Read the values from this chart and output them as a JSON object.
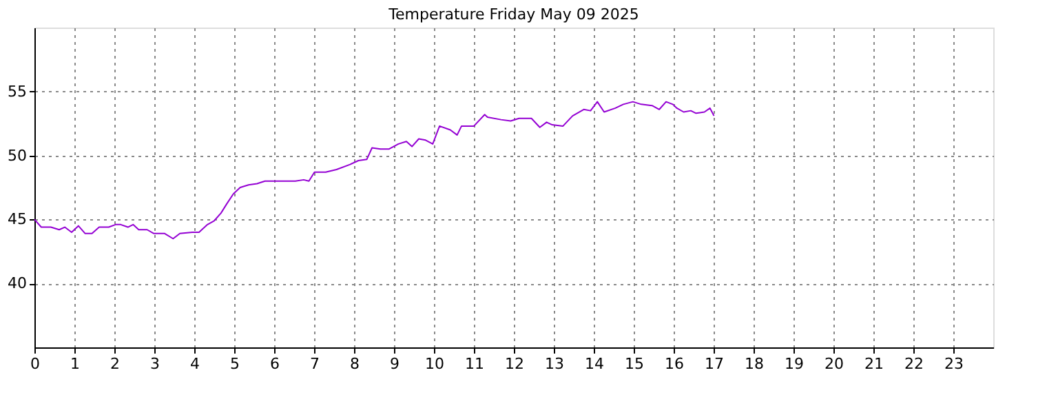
{
  "chart_data": {
    "type": "line",
    "title": "Temperature Friday May 09 2025",
    "x": [
      0,
      0.17,
      0.41,
      0.62,
      0.76,
      0.93,
      1.1,
      1.27,
      1.44,
      1.62,
      1.86,
      2.03,
      2.16,
      2.34,
      2.47,
      2.61,
      2.82,
      2.99,
      3.26,
      3.47,
      3.64,
      3.95,
      4.12,
      4.33,
      4.5,
      4.67,
      4.81,
      4.98,
      5.15,
      5.36,
      5.57,
      5.77,
      6.01,
      6.53,
      6.74,
      6.87,
      7.01,
      7.29,
      7.56,
      7.9,
      8.11,
      8.32,
      8.45,
      8.66,
      8.87,
      9.11,
      9.31,
      9.45,
      9.62,
      9.79,
      9.97,
      10.14,
      10.41,
      10.58,
      10.69,
      11.0,
      11.27,
      11.34,
      11.68,
      11.92,
      12.13,
      12.44,
      12.65,
      12.82,
      12.96,
      13.23,
      13.47,
      13.75,
      13.92,
      14.09,
      14.26,
      14.54,
      14.74,
      14.98,
      15.19,
      15.46,
      15.64,
      15.81,
      15.98,
      16.08,
      16.25,
      16.43,
      16.56,
      16.77,
      16.91,
      17.01
    ],
    "series": [
      {
        "color": "#9400d3",
        "values": [
          45.0,
          44.4,
          44.4,
          44.2,
          44.4,
          44.0,
          44.5,
          43.9,
          43.9,
          44.4,
          44.4,
          44.6,
          44.6,
          44.4,
          44.6,
          44.2,
          44.2,
          43.9,
          43.9,
          43.5,
          43.9,
          44.0,
          44.0,
          44.6,
          44.9,
          45.5,
          46.2,
          47.0,
          47.5,
          47.7,
          47.8,
          48.0,
          48.0,
          48.0,
          48.1,
          48.0,
          48.7,
          48.7,
          48.9,
          49.3,
          49.6,
          49.7,
          50.6,
          50.5,
          50.5,
          50.9,
          51.1,
          50.7,
          51.3,
          51.2,
          50.9,
          52.3,
          52.0,
          51.6,
          52.3,
          52.3,
          53.2,
          53.0,
          52.8,
          52.7,
          52.9,
          52.9,
          52.2,
          52.6,
          52.4,
          52.3,
          53.1,
          53.6,
          53.5,
          54.2,
          53.4,
          53.7,
          54.0,
          54.2,
          54.0,
          53.9,
          53.6,
          54.2,
          54.0,
          53.7,
          53.4,
          53.5,
          53.3,
          53.4,
          53.7,
          53.1
        ]
      }
    ],
    "xlim": [
      0,
      24
    ],
    "xticks": [
      0,
      1,
      2,
      3,
      4,
      5,
      6,
      7,
      8,
      9,
      10,
      11,
      12,
      13,
      14,
      15,
      16,
      17,
      18,
      19,
      20,
      21,
      22,
      23
    ],
    "ylim": [
      35,
      60
    ],
    "yticks": [
      40,
      45,
      50,
      55
    ],
    "grid": true,
    "line_style": "solid",
    "marker": "none"
  }
}
